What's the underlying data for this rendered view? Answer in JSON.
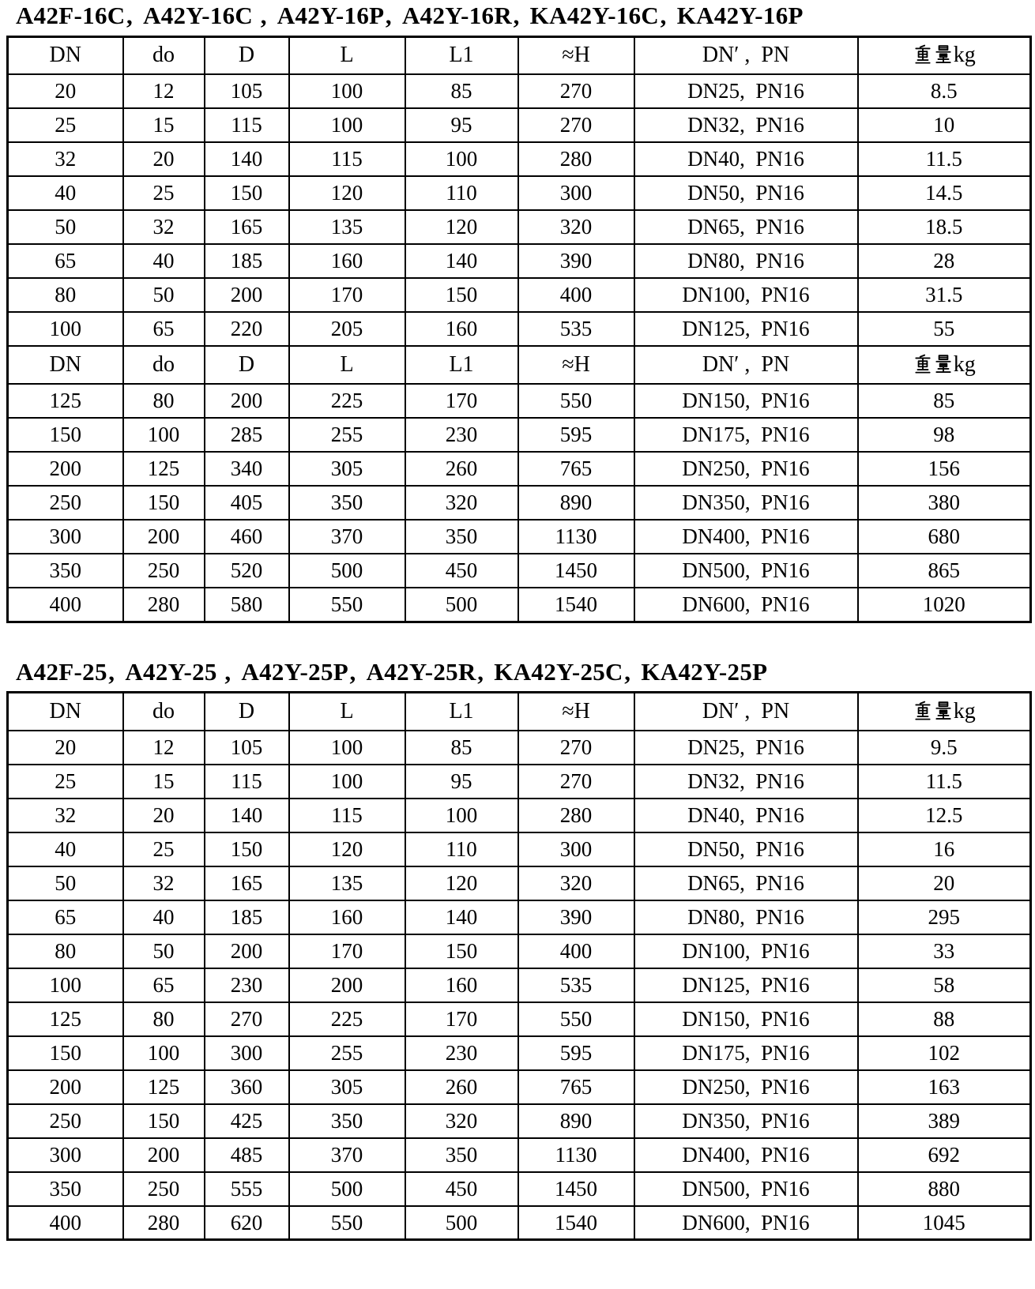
{
  "page": {
    "background_color": "#ffffff",
    "text_color": "#000000"
  },
  "tables": [
    {
      "title": "A42F-16C、A42Y-16C 、A42Y-16P、A42Y-16R、KA42Y-16C、KA42Y-16P",
      "rows": [
        {
          "type": "header",
          "cells": [
            "DN",
            "do",
            "D",
            "L",
            "L1",
            "≈H",
            "DN′ ，PN",
            "重量kg"
          ]
        },
        {
          "type": "data",
          "cells": [
            "20",
            "12",
            "105",
            "100",
            "85",
            "270",
            "DN25，PN16",
            "8.5"
          ]
        },
        {
          "type": "data",
          "cells": [
            "25",
            "15",
            "115",
            "100",
            "95",
            "270",
            "DN32，PN16",
            "10"
          ]
        },
        {
          "type": "data",
          "cells": [
            "32",
            "20",
            "140",
            "115",
            "100",
            "280",
            "DN40，PN16",
            "11.5"
          ]
        },
        {
          "type": "data",
          "cells": [
            "40",
            "25",
            "150",
            "120",
            "110",
            "300",
            "DN50，PN16",
            "14.5"
          ]
        },
        {
          "type": "data",
          "cells": [
            "50",
            "32",
            "165",
            "135",
            "120",
            "320",
            "DN65，PN16",
            "18.5"
          ]
        },
        {
          "type": "data",
          "cells": [
            "65",
            "40",
            "185",
            "160",
            "140",
            "390",
            "DN80，PN16",
            "28"
          ]
        },
        {
          "type": "data",
          "cells": [
            "80",
            "50",
            "200",
            "170",
            "150",
            "400",
            "DN100，PN16",
            "31.5"
          ]
        },
        {
          "type": "data",
          "cells": [
            "100",
            "65",
            "220",
            "205",
            "160",
            "535",
            "DN125，PN16",
            "55"
          ]
        },
        {
          "type": "header",
          "cells": [
            "DN",
            "do",
            "D",
            "L",
            "L1",
            "≈H",
            "DN′ ，PN",
            "重量kg"
          ]
        },
        {
          "type": "data",
          "cells": [
            "125",
            "80",
            "200",
            "225",
            "170",
            "550",
            "DN150，PN16",
            "85"
          ]
        },
        {
          "type": "data",
          "cells": [
            "150",
            "100",
            "285",
            "255",
            "230",
            "595",
            "DN175，PN16",
            "98"
          ]
        },
        {
          "type": "data",
          "cells": [
            "200",
            "125",
            "340",
            "305",
            "260",
            "765",
            "DN250，PN16",
            "156"
          ]
        },
        {
          "type": "data",
          "cells": [
            "250",
            "150",
            "405",
            "350",
            "320",
            "890",
            "DN350，PN16",
            "380"
          ]
        },
        {
          "type": "data",
          "cells": [
            "300",
            "200",
            "460",
            "370",
            "350",
            "1130",
            "DN400，PN16",
            "680"
          ]
        },
        {
          "type": "data",
          "cells": [
            "350",
            "250",
            "520",
            "500",
            "450",
            "1450",
            "DN500，PN16",
            "865"
          ]
        },
        {
          "type": "data",
          "cells": [
            "400",
            "280",
            "580",
            "550",
            "500",
            "1540",
            "DN600，PN16",
            "1020"
          ]
        }
      ]
    },
    {
      "title": "A42F-25、A42Y-25 、A42Y-25P、A42Y-25R、KA42Y-25C、KA42Y-25P",
      "rows": [
        {
          "type": "header",
          "cells": [
            "DN",
            "do",
            "D",
            "L",
            "L1",
            "≈H",
            "DN′ ，PN",
            "重量kg"
          ]
        },
        {
          "type": "data",
          "cells": [
            "20",
            "12",
            "105",
            "100",
            "85",
            "270",
            "DN25，PN16",
            "9.5"
          ]
        },
        {
          "type": "data",
          "cells": [
            "25",
            "15",
            "115",
            "100",
            "95",
            "270",
            "DN32，PN16",
            "11.5"
          ]
        },
        {
          "type": "data",
          "cells": [
            "32",
            "20",
            "140",
            "115",
            "100",
            "280",
            "DN40，PN16",
            "12.5"
          ]
        },
        {
          "type": "data",
          "cells": [
            "40",
            "25",
            "150",
            "120",
            "110",
            "300",
            "DN50，PN16",
            "16"
          ]
        },
        {
          "type": "data",
          "cells": [
            "50",
            "32",
            "165",
            "135",
            "120",
            "320",
            "DN65，PN16",
            "20"
          ]
        },
        {
          "type": "data",
          "cells": [
            "65",
            "40",
            "185",
            "160",
            "140",
            "390",
            "DN80，PN16",
            "295"
          ]
        },
        {
          "type": "data",
          "cells": [
            "80",
            "50",
            "200",
            "170",
            "150",
            "400",
            "DN100，PN16",
            "33"
          ]
        },
        {
          "type": "data",
          "cells": [
            "100",
            "65",
            "230",
            "200",
            "160",
            "535",
            "DN125，PN16",
            "58"
          ]
        },
        {
          "type": "data",
          "cells": [
            "125",
            "80",
            "270",
            "225",
            "170",
            "550",
            "DN150，PN16",
            "88"
          ]
        },
        {
          "type": "data",
          "cells": [
            "150",
            "100",
            "300",
            "255",
            "230",
            "595",
            "DN175，PN16",
            "102"
          ]
        },
        {
          "type": "data",
          "cells": [
            "200",
            "125",
            "360",
            "305",
            "260",
            "765",
            "DN250，PN16",
            "163"
          ]
        },
        {
          "type": "data",
          "cells": [
            "250",
            "150",
            "425",
            "350",
            "320",
            "890",
            "DN350，PN16",
            "389"
          ]
        },
        {
          "type": "data",
          "cells": [
            "300",
            "200",
            "485",
            "370",
            "350",
            "1130",
            "DN400，PN16",
            "692"
          ]
        },
        {
          "type": "data",
          "cells": [
            "350",
            "250",
            "555",
            "500",
            "450",
            "1450",
            "DN500，PN16",
            "880"
          ]
        },
        {
          "type": "data",
          "cells": [
            "400",
            "280",
            "620",
            "550",
            "500",
            "1540",
            "DN600，PN16",
            "1045"
          ]
        }
      ]
    }
  ]
}
